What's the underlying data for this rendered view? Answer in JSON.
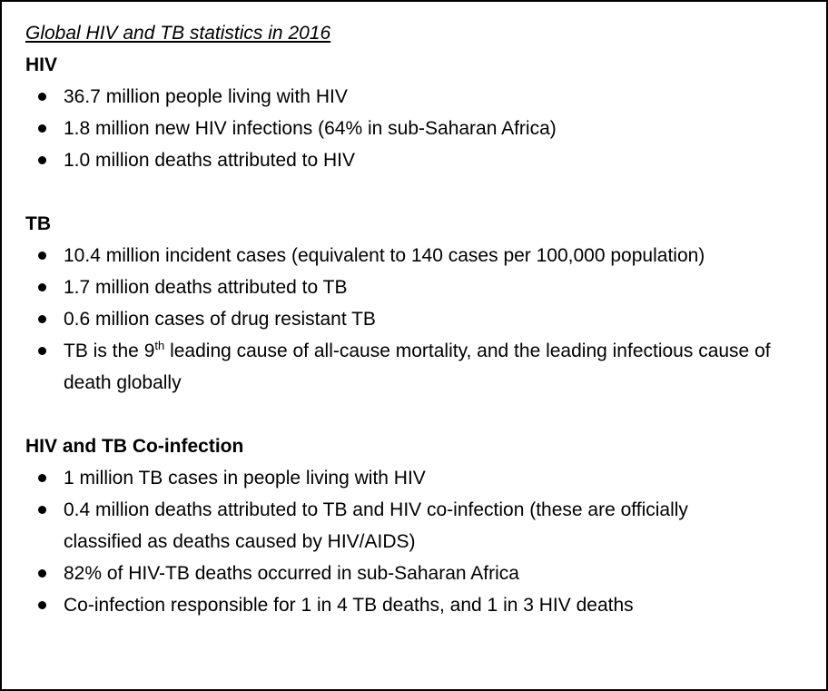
{
  "title": "Global HIV and TB statistics in 2016",
  "sections": [
    {
      "heading": "HIV",
      "items": [
        "36.7 million people living with HIV",
        "1.8 million new HIV infections (64% in sub-Saharan Africa)",
        "1.0 million deaths attributed to HIV"
      ]
    },
    {
      "heading": "TB",
      "items": [
        "10.4 million incident cases (equivalent to 140 cases per 100,000 population)",
        "1.7 million deaths attributed to TB",
        "0.6 million cases of drug resistant TB",
        [
          "TB is the 9",
          "th",
          " leading cause of all-cause mortality, and the leading infectious cause of death globally"
        ]
      ]
    },
    {
      "heading": "HIV and TB Co-infection",
      "items": [
        "1 million TB cases in people living with HIV",
        "0.4 million deaths attributed to TB and HIV co-infection (these are officially classified as deaths caused by HIV/AIDS)",
        "82% of HIV-TB deaths occurred in sub-Saharan Africa",
        "Co-infection responsible for 1 in 4 TB deaths, and 1 in 3 HIV deaths"
      ]
    }
  ]
}
